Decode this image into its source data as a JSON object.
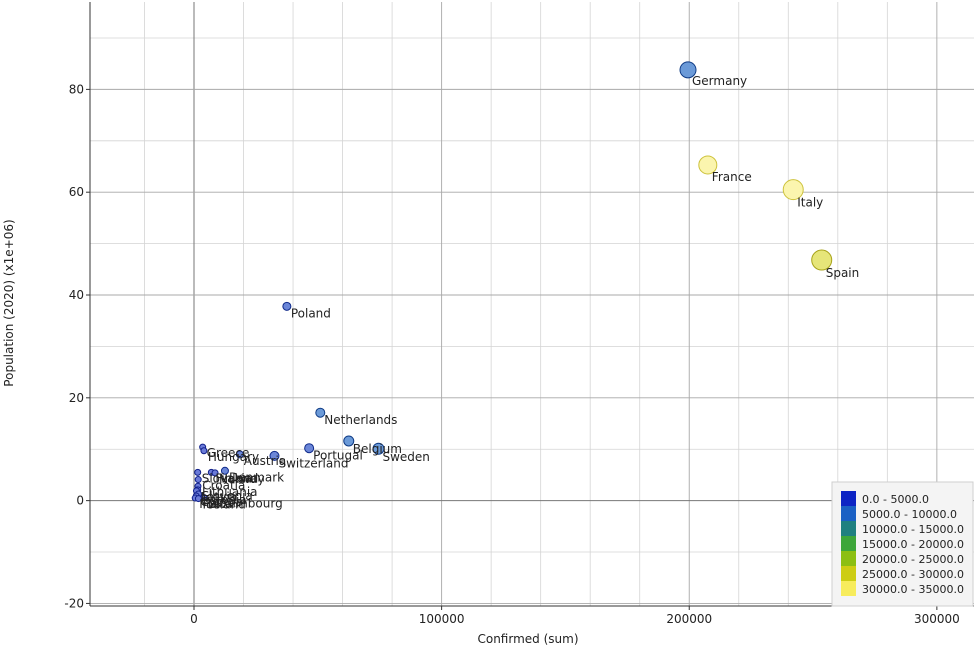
{
  "chart_data": {
    "type": "scatter",
    "title": "",
    "xlabel": "Confirmed (sum)",
    "ylabel": "Population (2020) (x1e+06)",
    "xlim": [
      -42000,
      315000
    ],
    "ylim": [
      -20.5,
      97
    ],
    "x_major_ticks": [
      0,
      100000,
      200000,
      300000
    ],
    "x_minor_ticks": [
      -20000,
      20000,
      40000,
      60000,
      80000,
      120000,
      140000,
      160000,
      180000,
      220000,
      240000,
      260000,
      280000
    ],
    "x_tick_labels": [
      "0",
      "100000",
      "200000",
      "300000"
    ],
    "y_major_ticks": [
      -20,
      0,
      20,
      40,
      60,
      80
    ],
    "y_minor_ticks": [
      -10,
      10,
      30,
      50,
      70,
      90
    ],
    "y_tick_labels": [
      "-20",
      "0",
      "20",
      "40",
      "60",
      "80"
    ],
    "grid": true,
    "legend_position": "bottom-right",
    "color_ranges": [
      {
        "label": "0.0 - 5000.0",
        "color": "#0d24c4"
      },
      {
        "label": "5000.0 - 10000.0",
        "color": "#1a60c4"
      },
      {
        "label": "10000.0 - 15000.0",
        "color": "#1f8080"
      },
      {
        "label": "15000.0 - 20000.0",
        "color": "#3da63a"
      },
      {
        "label": "20000.0 - 25000.0",
        "color": "#8cbf12"
      },
      {
        "label": "25000.0 - 30000.0",
        "color": "#cdcd13"
      },
      {
        "label": "30000.0 - 35000.0",
        "color": "#f7ec5c"
      }
    ],
    "points": [
      {
        "label": "Germany",
        "x": 199500,
        "y": 83.8,
        "size": 8,
        "fill": "#6b9ad8",
        "stroke": "#0f3b85"
      },
      {
        "label": "France",
        "x": 207500,
        "y": 65.3,
        "size": 9,
        "fill": "#fbf5ae",
        "stroke": "#cdc23b"
      },
      {
        "label": "Italy",
        "x": 242000,
        "y": 60.5,
        "size": 10,
        "fill": "#fbf5ae",
        "stroke": "#cdc23b"
      },
      {
        "label": "Spain",
        "x": 253500,
        "y": 46.8,
        "size": 10,
        "fill": "#e6e579",
        "stroke": "#a8a31a"
      },
      {
        "label": "Poland",
        "x": 37500,
        "y": 37.8,
        "size": 4,
        "fill": "#6b86d8",
        "stroke": "#0f2a8a"
      },
      {
        "label": "Netherlands",
        "x": 51000,
        "y": 17.1,
        "size": 4.5,
        "fill": "#6b9ad8",
        "stroke": "#0f3b85"
      },
      {
        "label": "Belgium",
        "x": 62500,
        "y": 11.6,
        "size": 5,
        "fill": "#6b9ad8",
        "stroke": "#0f3b85"
      },
      {
        "label": "Sweden",
        "x": 74500,
        "y": 10.1,
        "size": 5.5,
        "fill": "#6b9ad8",
        "stroke": "#0f3b85"
      },
      {
        "label": "Portugal",
        "x": 46500,
        "y": 10.2,
        "size": 4.5,
        "fill": "#6b86d8",
        "stroke": "#0f2a8a"
      },
      {
        "label": "Switzerland",
        "x": 32500,
        "y": 8.7,
        "size": 4.5,
        "fill": "#6b86d8",
        "stroke": "#0f2a8a"
      },
      {
        "label": "Austria",
        "x": 18500,
        "y": 9.0,
        "size": 3.5,
        "fill": "#6b86d8",
        "stroke": "#0f2a8a"
      },
      {
        "label": "Greece",
        "x": 3500,
        "y": 10.4,
        "size": 3,
        "fill": "#6b7bd8",
        "stroke": "#0f1f8a"
      },
      {
        "label": "Hungary",
        "x": 4000,
        "y": 9.7,
        "size": 3,
        "fill": "#6b7bd8",
        "stroke": "#0f1f8a"
      },
      {
        "label": "Denmark",
        "x": 12500,
        "y": 5.8,
        "size": 3.5,
        "fill": "#6b86d8",
        "stroke": "#0f2a8a"
      },
      {
        "label": "Finland",
        "x": 7000,
        "y": 5.5,
        "size": 3,
        "fill": "#6b7bd8",
        "stroke": "#0f1f8a"
      },
      {
        "label": "Norway",
        "x": 8500,
        "y": 5.4,
        "size": 3,
        "fill": "#6b7bd8",
        "stroke": "#0f1f8a"
      },
      {
        "label": "Slovakia",
        "x": 1500,
        "y": 5.5,
        "size": 3,
        "fill": "#6b7bd8",
        "stroke": "#0f1f8a"
      },
      {
        "label": "Croatia",
        "x": 1700,
        "y": 4.1,
        "size": 3,
        "fill": "#6b7bd8",
        "stroke": "#0f1f8a"
      },
      {
        "label": "Lithuania",
        "x": 1600,
        "y": 2.8,
        "size": 3,
        "fill": "#6b7bd8",
        "stroke": "#0f1f8a"
      },
      {
        "label": "Slovenia",
        "x": 1500,
        "y": 2.1,
        "size": 3,
        "fill": "#6b7bd8",
        "stroke": "#0f1f8a"
      },
      {
        "label": "Latvia",
        "x": 1000,
        "y": 1.9,
        "size": 3,
        "fill": "#6b7bd8",
        "stroke": "#0f1f8a"
      },
      {
        "label": "Estonia",
        "x": 1800,
        "y": 1.3,
        "size": 3,
        "fill": "#6b7bd8",
        "stroke": "#0f1f8a"
      },
      {
        "label": "Cyprus",
        "x": 900,
        "y": 0.9,
        "size": 3,
        "fill": "#6b7bd8",
        "stroke": "#0f1f8a"
      },
      {
        "label": "Luxembourg",
        "x": 4000,
        "y": 0.6,
        "size": 3,
        "fill": "#6b7bd8",
        "stroke": "#0f1f8a"
      },
      {
        "label": "Malta",
        "x": 500,
        "y": 0.5,
        "size": 3,
        "fill": "#6b7bd8",
        "stroke": "#0f1f8a"
      },
      {
        "label": "Iceland",
        "x": 1800,
        "y": 0.4,
        "size": 3,
        "fill": "#6b7bd8",
        "stroke": "#0f1f8a"
      }
    ]
  }
}
